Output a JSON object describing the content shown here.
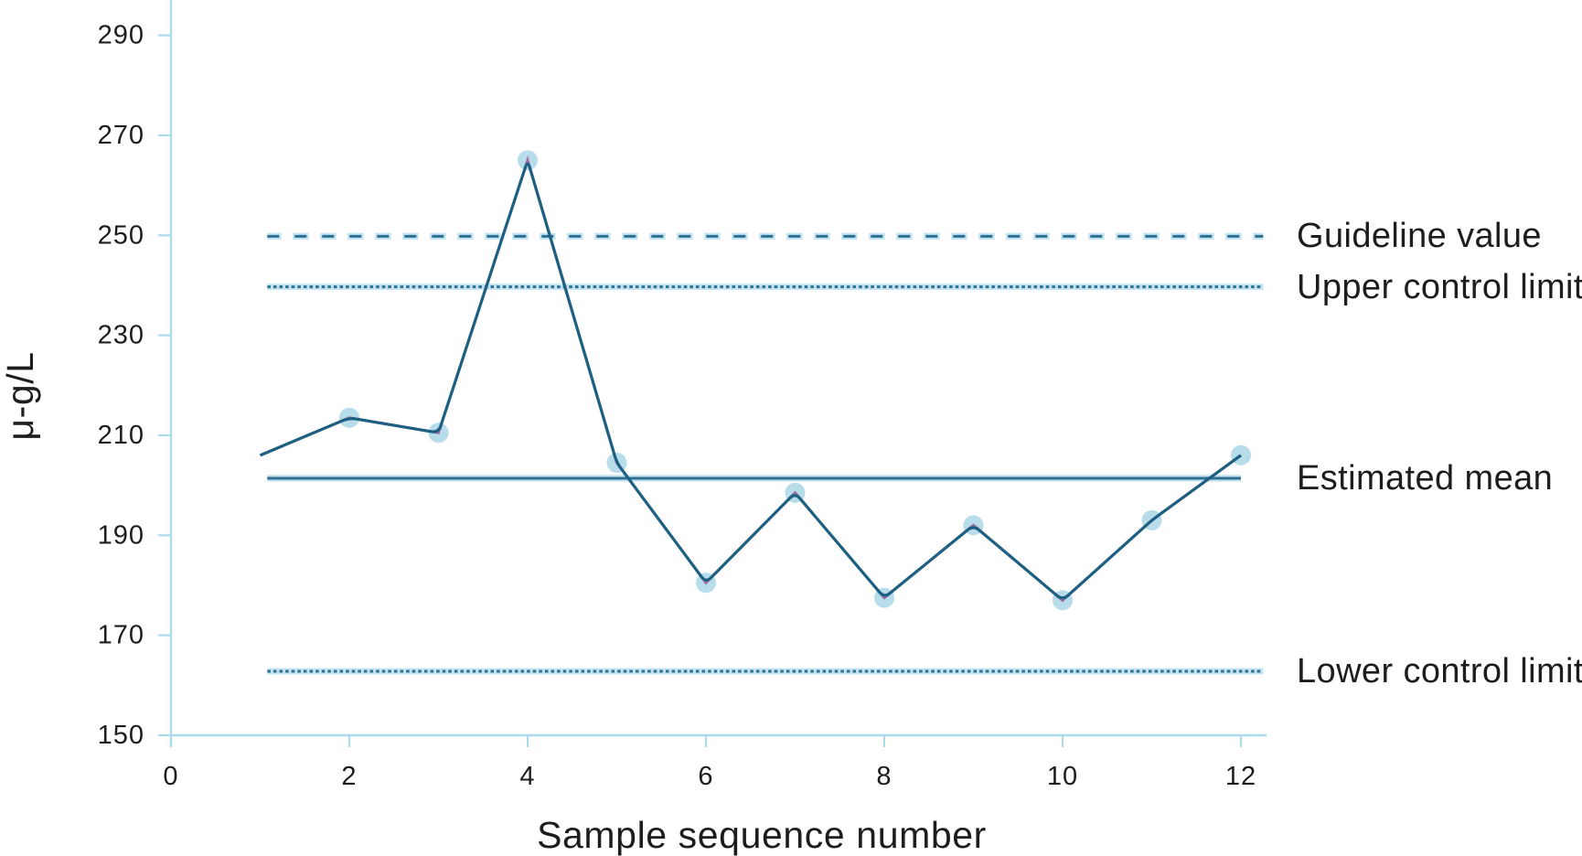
{
  "figure": {
    "description": "Quality control chart of measured concentration versus sample sequence number"
  },
  "chart_data": {
    "type": "line",
    "title": "",
    "xlabel": "Sample sequence number",
    "ylabel": "μ-g/L",
    "x": [
      1,
      2,
      3,
      4,
      5,
      6,
      7,
      8,
      9,
      10,
      11,
      12
    ],
    "values": [
      206,
      213.5,
      210.5,
      265,
      204.5,
      180.5,
      198.5,
      177.5,
      192,
      177,
      193,
      206
    ],
    "markers_on": [
      2,
      3,
      4,
      5,
      6,
      7,
      8,
      9,
      10,
      11,
      12
    ],
    "xlim": [
      0,
      12.55
    ],
    "ylim": [
      150,
      297
    ],
    "x_ticks": [
      0,
      2,
      4,
      6,
      8,
      10,
      12
    ],
    "y_ticks": [
      150,
      170,
      190,
      210,
      230,
      250,
      270,
      290
    ],
    "grid": false,
    "legend_position": "right-annotations",
    "reference_lines": [
      {
        "id": "guideline",
        "label": "Guideline value",
        "value": 249.8,
        "style": "dashed",
        "span": [
          1.08,
          12.25
        ]
      },
      {
        "id": "ucl",
        "label": "Upper control limit",
        "value": 239.7,
        "style": "dotted",
        "span": [
          1.08,
          12.25
        ]
      },
      {
        "id": "mean",
        "label": "Estimated mean",
        "value": 201.4,
        "style": "solid",
        "span": [
          1.08,
          12.0
        ]
      },
      {
        "id": "lcl",
        "label": "Lower control limit",
        "value": 162.8,
        "style": "dotted",
        "span": [
          1.08,
          12.25
        ]
      }
    ]
  },
  "colors": {
    "series_line": "#1e6081",
    "series_line_secondary": "#a06ca6",
    "marker_fill": "#b7dcea",
    "reference_dark": "#2d7195",
    "reference_casing": "#c6e4f0",
    "axis": "#aedbeb",
    "text": "#1d1d1b"
  }
}
